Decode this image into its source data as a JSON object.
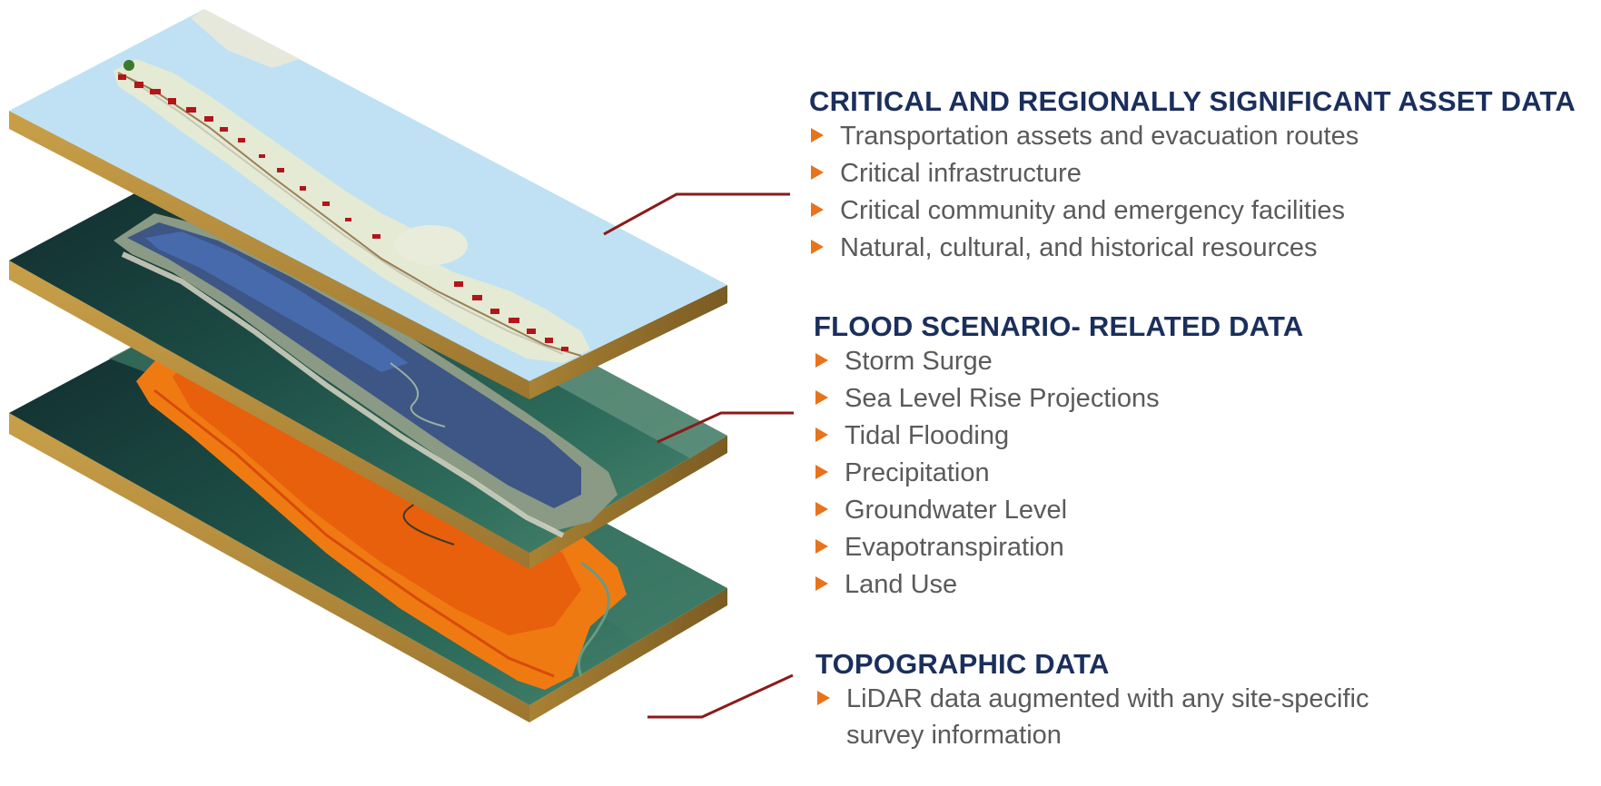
{
  "sections": [
    {
      "heading": "CRITICAL AND REGIONALLY SIGNIFICANT ASSET DATA",
      "items": [
        "Transportation assets and evacuation routes",
        "Critical infrastructure",
        "Critical community and emergency facilities",
        "Natural, cultural, and historical resources"
      ]
    },
    {
      "heading": "FLOOD SCENARIO- RELATED DATA",
      "items": [
        "Storm Surge",
        "Sea Level Rise Projections",
        "Tidal Flooding",
        "Precipitation",
        "Groundwater Level",
        "Evapotranspiration",
        "Land Use"
      ]
    },
    {
      "heading": "TOPOGRAPHIC DATA",
      "items": [
        "LiDAR data augmented with any site-specific",
        "survey information"
      ]
    }
  ],
  "colors": {
    "heading": "#1b2f5c",
    "body_text": "#5a5a5a",
    "bullet": "#e8731c",
    "connector": "#8b1a1a",
    "slab_edge": "#c79a4a",
    "asset_map_water": "#bfe1f3",
    "imagery_water": "#1f5a4e",
    "topo_orange": "#f07a12"
  },
  "layers": [
    {
      "name": "asset-map-layer",
      "content": "road map with asset markers"
    },
    {
      "name": "imagery-layer",
      "content": "satellite imagery with structures"
    },
    {
      "name": "topography-layer",
      "content": "elevation map"
    }
  ]
}
